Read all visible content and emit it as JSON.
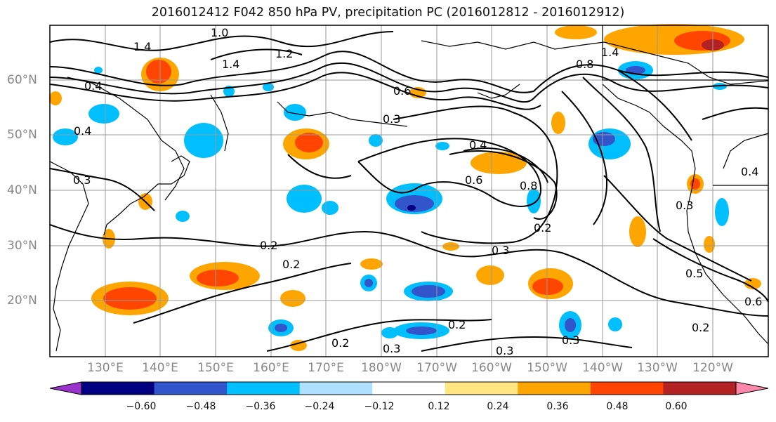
{
  "title": "2016012412 F042 850 hPa PV, precipitation PC (2016012812 - 2016012912)",
  "lat_labels": [
    "60°N",
    "50°N",
    "40°N",
    "30°N",
    "20°N"
  ],
  "lon_labels": [
    "130°E",
    "140°E",
    "150°E",
    "160°E",
    "170°E",
    "180°W",
    "170°W",
    "160°W",
    "150°W",
    "140°W",
    "130°W",
    "120°W"
  ],
  "contour_labels": [
    "1.0",
    "1.4",
    "1.4",
    "1.2",
    "1.4",
    "0.8",
    "0.4",
    "0.6",
    "0.4",
    "0.3",
    "0.3",
    "0.4",
    "0.6",
    "0.8",
    "0.2",
    "0.2",
    "0.2",
    "0.3",
    "0.5",
    "0.6",
    "0.2",
    "0.3",
    "0.2",
    "0.3",
    "0.2",
    "0.3",
    "0.3",
    "0.4"
  ],
  "colorbar": {
    "tick_labels": [
      "−0.60",
      "−0.48",
      "−0.36",
      "−0.24",
      "−0.12",
      "0.12",
      "0.24",
      "0.36",
      "0.48",
      "0.60"
    ],
    "colors": [
      "#9933cc",
      "#000080",
      "#3355cc",
      "#00bfff",
      "#b0e0ff",
      "#ffffff",
      "#ffe680",
      "#ffa500",
      "#ff4500",
      "#b22222",
      "#ff88aa"
    ]
  }
}
